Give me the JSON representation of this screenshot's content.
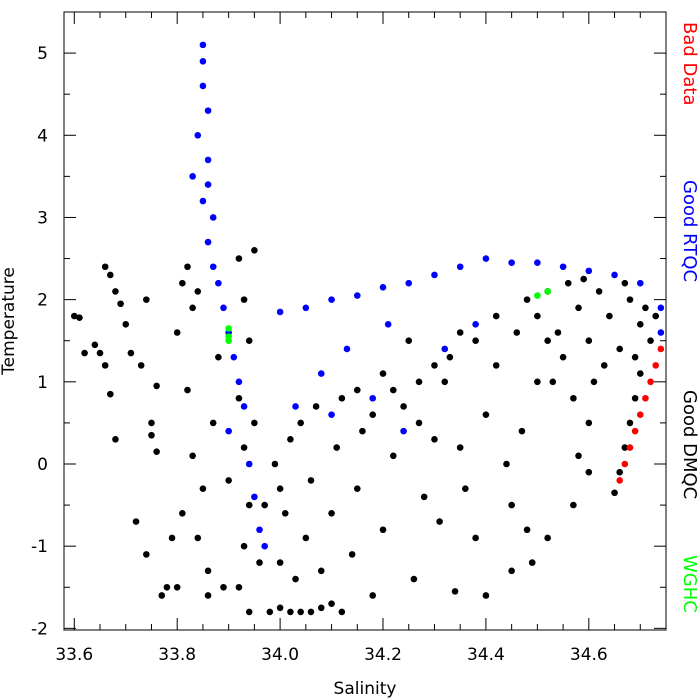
{
  "chart_data": {
    "type": "scatter",
    "x_label": "Salinity",
    "y_label": "Temperature",
    "xlim": [
      33.58,
      34.75
    ],
    "ylim": [
      -2.02,
      5.5
    ],
    "xticks": [
      33.6,
      33.8,
      {
        "value": 34.0,
        "label": "34.0"
      },
      34.2,
      34.4,
      34.6
    ],
    "yticks": [
      -2,
      -1,
      0,
      1,
      2,
      3,
      4,
      5
    ],
    "xminorticks": [
      33.65,
      33.7,
      33.75,
      33.85,
      33.9,
      33.95,
      34.05,
      34.1,
      34.15,
      34.25,
      34.3,
      34.35,
      34.45,
      34.5,
      34.55,
      34.65,
      34.7
    ],
    "yminorticks": [
      -1.5,
      -0.5,
      0.5,
      1.5,
      2.5,
      3.5,
      4.5
    ],
    "legend": "right",
    "series": [
      {
        "name": "Bad Data",
        "color": "#ff0000",
        "x": [
          34.74,
          34.73,
          34.72,
          34.71,
          34.7,
          34.69,
          34.68,
          34.67,
          34.66
        ],
        "y": [
          1.4,
          1.2,
          1.0,
          0.8,
          0.6,
          0.4,
          0.2,
          0.0,
          -0.2
        ]
      },
      {
        "name": "Good RTQC",
        "color": "#0000ff",
        "x": [
          33.85,
          33.85,
          33.85,
          33.86,
          33.84,
          33.86,
          33.86,
          33.85,
          33.83,
          33.87,
          33.86,
          33.87,
          33.88,
          33.89,
          33.9,
          33.91,
          33.92,
          33.93,
          33.9,
          33.94,
          33.95,
          33.96,
          33.97,
          34.0,
          34.05,
          34.1,
          34.15,
          34.2,
          34.25,
          34.3,
          34.35,
          34.4,
          34.45,
          34.5,
          34.55,
          34.6,
          34.65,
          34.7,
          34.74,
          34.74,
          34.03,
          34.1,
          34.18,
          34.24,
          34.32,
          34.38,
          34.13,
          34.08,
          34.21
        ],
        "y": [
          5.1,
          4.9,
          4.6,
          4.3,
          4.0,
          3.7,
          3.4,
          3.2,
          3.5,
          3.0,
          2.7,
          2.4,
          2.2,
          1.9,
          1.6,
          1.3,
          1.0,
          0.7,
          0.4,
          0.0,
          -0.4,
          -0.8,
          -1.0,
          1.85,
          1.9,
          2.0,
          2.05,
          2.15,
          2.2,
          2.3,
          2.4,
          2.5,
          2.45,
          2.45,
          2.4,
          2.35,
          2.3,
          2.2,
          1.9,
          1.6,
          0.7,
          0.6,
          0.8,
          0.4,
          1.4,
          1.7,
          1.4,
          1.1,
          1.7
        ]
      },
      {
        "name": "Good DMQC",
        "color": "#000000",
        "x": [
          33.6,
          33.61,
          33.62,
          33.64,
          33.65,
          33.66,
          33.67,
          33.68,
          33.66,
          33.67,
          33.69,
          33.68,
          33.71,
          33.73,
          33.74,
          33.75,
          33.76,
          33.72,
          33.74,
          33.77,
          33.78,
          33.76,
          33.75,
          33.7,
          33.81,
          33.82,
          33.83,
          33.84,
          33.8,
          33.82,
          33.83,
          33.81,
          33.84,
          33.86,
          33.85,
          33.87,
          33.88,
          33.89,
          33.8,
          33.79,
          33.86,
          33.9,
          33.92,
          33.93,
          33.94,
          33.92,
          33.93,
          33.94,
          33.93,
          33.92,
          33.95,
          33.94,
          33.96,
          33.95,
          33.97,
          33.98,
          34.0,
          34.02,
          34.04,
          34.06,
          34.08,
          34.1,
          34.12,
          34.0,
          34.01,
          33.99,
          34.02,
          34.0,
          34.03,
          34.05,
          34.04,
          34.06,
          34.07,
          34.08,
          34.1,
          34.11,
          34.12,
          34.14,
          34.15,
          34.16,
          34.18,
          34.2,
          34.22,
          34.24,
          34.26,
          34.28,
          34.3,
          34.32,
          34.34,
          34.35,
          34.38,
          34.4,
          34.42,
          34.45,
          34.47,
          34.5,
          34.52,
          34.36,
          34.44,
          34.48,
          34.31,
          34.27,
          34.48,
          34.5,
          34.52,
          34.54,
          34.56,
          34.58,
          34.6,
          34.62,
          34.64,
          34.66,
          34.68,
          34.7,
          34.72,
          34.55,
          34.59,
          34.63,
          34.67,
          34.71,
          34.46,
          34.53,
          34.57,
          34.61,
          34.69,
          34.73,
          34.42,
          34.38,
          34.35,
          34.33,
          34.3,
          34.27,
          34.25,
          34.22,
          34.2,
          34.18,
          34.15,
          34.65,
          34.66,
          34.67,
          34.68,
          34.69,
          34.7,
          34.58,
          34.6,
          34.57,
          34.52,
          34.49,
          34.45,
          34.4,
          34.6
        ],
        "y": [
          1.8,
          1.78,
          1.35,
          1.45,
          1.35,
          2.4,
          2.3,
          2.1,
          1.2,
          0.85,
          1.95,
          0.3,
          1.35,
          1.2,
          2.0,
          0.5,
          0.15,
          -0.7,
          -1.1,
          -1.6,
          -1.5,
          0.95,
          0.35,
          1.7,
          2.2,
          2.4,
          1.9,
          2.1,
          1.6,
          0.9,
          0.1,
          -0.6,
          -0.9,
          -1.3,
          -0.3,
          0.5,
          1.3,
          -1.5,
          -1.5,
          -0.9,
          -1.6,
          -0.2,
          2.5,
          2.0,
          1.5,
          0.8,
          0.2,
          -0.5,
          -1.0,
          -1.5,
          2.6,
          -1.8,
          -1.2,
          0.5,
          -0.5,
          -1.8,
          -1.75,
          -1.8,
          -1.8,
          -1.8,
          -1.75,
          -1.7,
          -1.8,
          -1.2,
          -0.6,
          0.0,
          0.3,
          -0.3,
          -1.4,
          -0.9,
          0.5,
          -0.2,
          0.7,
          -1.3,
          -0.6,
          0.2,
          0.8,
          -1.1,
          -0.3,
          0.4,
          -1.6,
          -0.8,
          0.1,
          0.7,
          -1.4,
          -0.4,
          0.3,
          1.0,
          -1.55,
          0.2,
          -0.9,
          0.6,
          1.2,
          -0.5,
          0.4,
          1.0,
          1.5,
          -0.3,
          0.0,
          -0.8,
          -0.7,
          0.5,
          2.0,
          1.8,
          2.1,
          1.6,
          2.2,
          1.9,
          1.5,
          2.1,
          1.8,
          1.4,
          2.0,
          1.7,
          1.5,
          1.3,
          2.25,
          1.2,
          2.2,
          1.9,
          1.6,
          1.0,
          0.8,
          1.0,
          1.3,
          1.8,
          1.8,
          1.5,
          1.6,
          1.3,
          1.2,
          1.0,
          1.5,
          0.9,
          1.1,
          0.6,
          0.9,
          -0.35,
          -0.1,
          0.2,
          0.5,
          0.8,
          1.1,
          0.1,
          -0.1,
          -0.5,
          -0.9,
          -1.2,
          -1.3,
          -1.6,
          0.5
        ]
      },
      {
        "name": "WGHC",
        "color": "#00ff00",
        "x": [
          33.9,
          33.9,
          33.9,
          34.5,
          34.52
        ],
        "y": [
          1.65,
          1.55,
          1.5,
          2.05,
          2.1
        ]
      }
    ]
  }
}
